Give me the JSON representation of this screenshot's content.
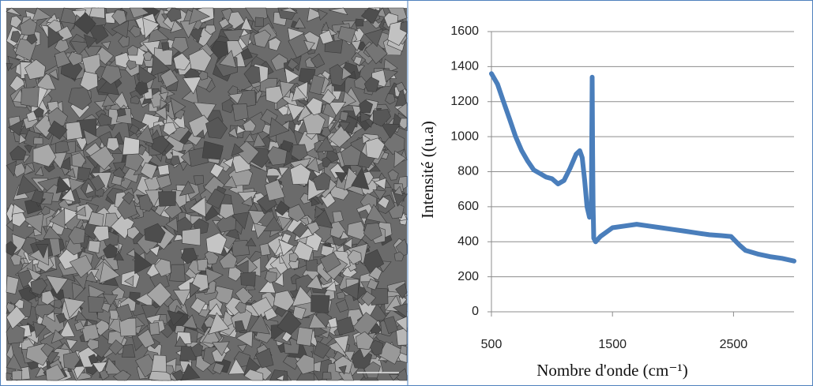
{
  "chart_data": {
    "type": "line",
    "x_label": "Nombre d'onde (cm⁻¹)",
    "y_label": "Intensité ((u.a)",
    "x": [
      500,
      550,
      600,
      650,
      700,
      750,
      800,
      850,
      900,
      950,
      1000,
      1050,
      1100,
      1150,
      1200,
      1230,
      1250,
      1270,
      1290,
      1310,
      1325,
      1332,
      1336,
      1340,
      1345,
      1360,
      1400,
      1500,
      1600,
      1700,
      1800,
      1900,
      2000,
      2100,
      2200,
      2300,
      2400,
      2480,
      2550,
      2600,
      2700,
      2800,
      2900,
      3000
    ],
    "series": [
      {
        "color": "#4a7ebb",
        "values": [
          1360,
          1300,
          1200,
          1100,
          1000,
          920,
          860,
          810,
          790,
          770,
          760,
          730,
          750,
          820,
          900,
          920,
          880,
          750,
          600,
          540,
          560,
          1340,
          900,
          600,
          420,
          400,
          430,
          480,
          490,
          500,
          490,
          480,
          470,
          460,
          450,
          440,
          435,
          430,
          380,
          350,
          330,
          315,
          305,
          290
        ]
      }
    ],
    "xlim": [
      500,
      3000
    ],
    "xticks": [
      500,
      1500,
      2500
    ],
    "ylim": [
      0,
      1600
    ],
    "yticks": [
      0,
      200,
      400,
      600,
      800,
      1000,
      1200,
      1400,
      1600
    ],
    "grid": true
  }
}
